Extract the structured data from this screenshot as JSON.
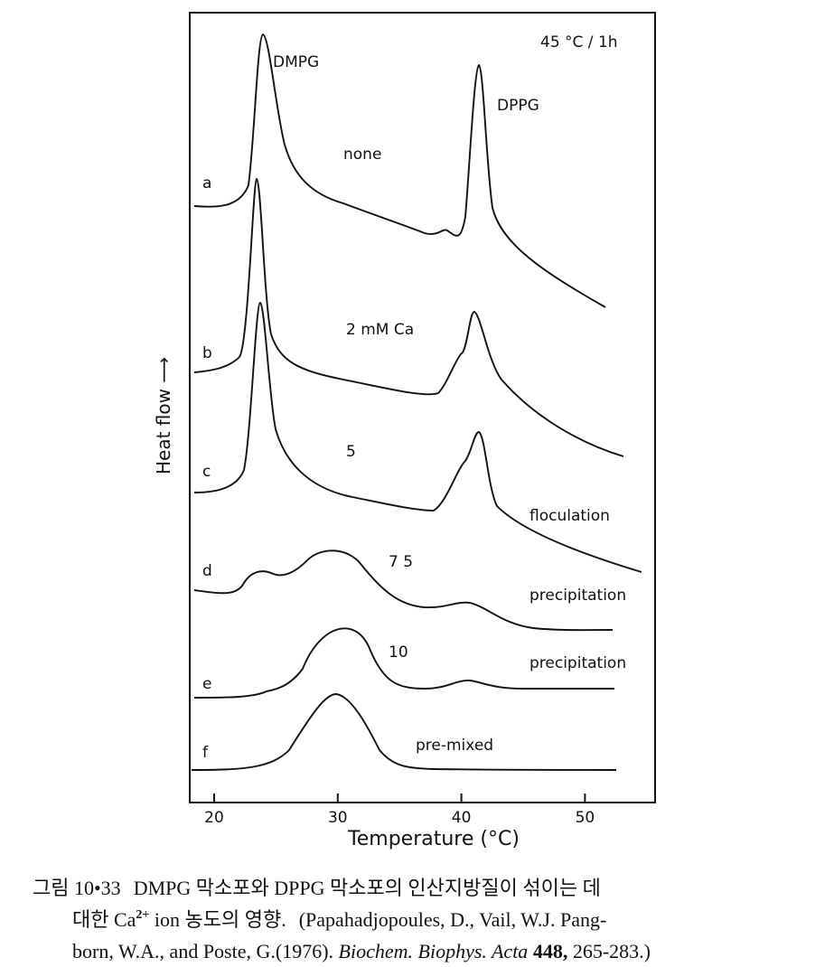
{
  "figure": {
    "corner_label": "45 °C / 1h",
    "peak_labels": [
      "DMPG",
      "DPPG"
    ],
    "traces": [
      {
        "letter": "a",
        "label": "none"
      },
      {
        "letter": "b",
        "label": "2 mM Ca"
      },
      {
        "letter": "c",
        "label": "5",
        "note": "floculation"
      },
      {
        "letter": "d",
        "label": "7 5",
        "note": "precipitation"
      },
      {
        "letter": "e",
        "label": "10",
        "note": "precipitation"
      },
      {
        "letter": "f",
        "label": "pre-mixed"
      }
    ],
    "y_axis_label": "Heat flow ⟶",
    "x_axis_label": "Temperature (°C)",
    "x_ticks": [
      20,
      30,
      40,
      50
    ]
  },
  "caption": {
    "figure_number": "그림 10•33",
    "line1": "DMPG 막소포와 DPPG 막소포의 인산지방질이 섞이는 데",
    "line2_start": "대한 Ca",
    "superscript": "2+",
    "line2_mid": " ion 농도의 영향.",
    "line2_ref": "(Papahadjopoules, D., Vail, W.J. Pang-",
    "line3_start": "born, W.A., and Poste, G.(1976). ",
    "journal": "Biochem. Biophys. Acta",
    "volume": " 448,",
    "pages": " 265-283.)"
  }
}
